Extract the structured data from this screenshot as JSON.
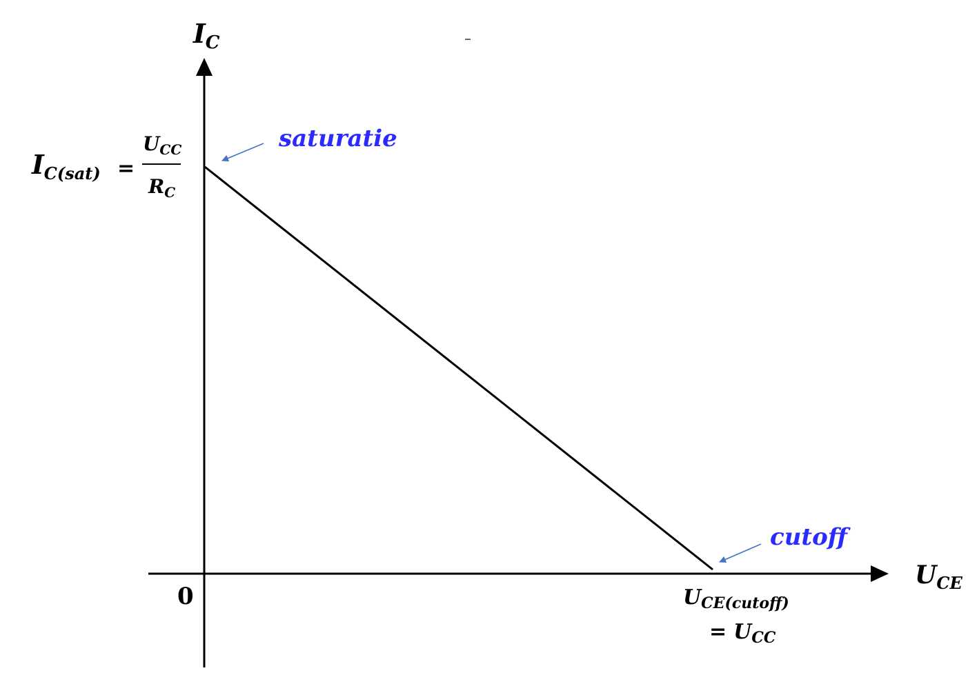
{
  "colors": {
    "axis": "#000000",
    "load_line": "#000000",
    "annotation_text": "#2b2bff",
    "annotation_arrow": "#4472c4"
  },
  "axes": {
    "y_label": {
      "main": "I",
      "sub": "C"
    },
    "x_label": {
      "main": "U",
      "sub": "CE"
    },
    "origin": "0"
  },
  "sat_label": {
    "lhs_main": "I",
    "lhs_sub": "C(sat)",
    "equals": "=",
    "num_main": "U",
    "num_sub": "CC",
    "den_main": "R",
    "den_sub": "C"
  },
  "cutoff_label": {
    "main": "U",
    "sub": "CE(cutoff)",
    "equals": "=",
    "rhs_main": "U",
    "rhs_sub": "CC"
  },
  "annotations": {
    "saturation": "saturatie",
    "cutoff": "cutoff"
  },
  "load_line": {
    "description": "load line from saturation point on the IC axis to cutoff point on the UCE axis"
  }
}
